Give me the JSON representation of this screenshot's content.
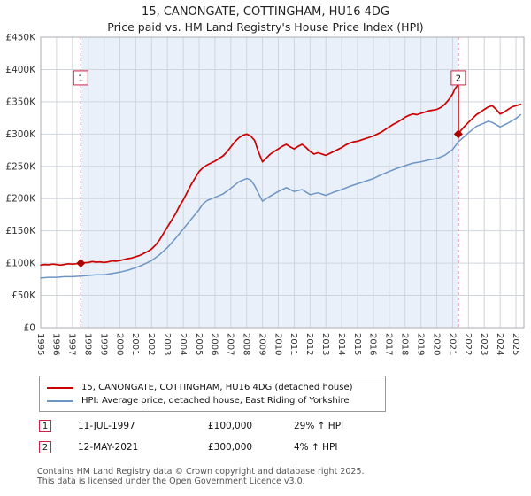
{
  "title": "15, CANONGATE, COTTINGHAM, HU16 4DG",
  "subtitle": "Price paid vs. HM Land Registry's House Price Index (HPI)",
  "chart_data": {
    "type": "line",
    "title": "15, CANONGATE, COTTINGHAM, HU16 4DG",
    "subtitle": "Price paid vs. HM Land Registry's House Price Index (HPI)",
    "y_units": "GBP_thousands",
    "xlim": [
      1995,
      2025.5
    ],
    "ylim_thousands": [
      0,
      450
    ],
    "ytick_values_thousands": [
      0,
      50,
      100,
      150,
      200,
      250,
      300,
      350,
      400,
      450
    ],
    "ytick_labels": [
      "£0",
      "£50K",
      "£100K",
      "£150K",
      "£200K",
      "£250K",
      "£300K",
      "£350K",
      "£400K",
      "£450K"
    ],
    "xtick_labels": [
      "1995",
      "1996",
      "1997",
      "1998",
      "1999",
      "2000",
      "2001",
      "2002",
      "2003",
      "2004",
      "2005",
      "2006",
      "2007",
      "2008",
      "2009",
      "2010",
      "2011",
      "2012",
      "2013",
      "2014",
      "2015",
      "2016",
      "2017",
      "2018",
      "2019",
      "2020",
      "2021",
      "2022",
      "2023",
      "2024",
      "2025"
    ],
    "grid": true,
    "legend_position": "bottom",
    "shaded_region_x": [
      1997.53,
      2021.36
    ],
    "colors": {
      "property_line": "#cc0000",
      "hpi_line": "#6d95c5",
      "sale_dashed": "#e0506e",
      "band": "#eaf0f9",
      "grid": "#d0d5dd",
      "border": "#a9aeb6",
      "marker": "#aa0000",
      "tick_text": "#333333"
    },
    "series": [
      {
        "name": "15, CANONGATE, COTTINGHAM, HU16 4DG (detached house)",
        "color": "#cc0000",
        "x": [
          1995,
          1995.25,
          1995.5,
          1995.75,
          1996,
          1996.25,
          1996.5,
          1996.75,
          1997,
          1997.25,
          1997.53,
          1997.75,
          1998,
          1998.25,
          1998.5,
          1998.75,
          1999,
          1999.25,
          1999.5,
          1999.75,
          2000,
          2000.25,
          2000.5,
          2000.75,
          2001,
          2001.25,
          2001.5,
          2001.75,
          2002,
          2002.25,
          2002.5,
          2002.75,
          2003,
          2003.25,
          2003.5,
          2003.75,
          2004,
          2004.25,
          2004.5,
          2004.75,
          2005,
          2005.25,
          2005.5,
          2005.75,
          2006,
          2006.25,
          2006.5,
          2006.75,
          2007,
          2007.25,
          2007.5,
          2007.75,
          2008,
          2008.25,
          2008.5,
          2008.75,
          2009,
          2009.25,
          2009.5,
          2009.75,
          2010,
          2010.25,
          2010.5,
          2010.75,
          2011,
          2011.25,
          2011.5,
          2011.75,
          2012,
          2012.25,
          2012.5,
          2012.75,
          2013,
          2013.25,
          2013.5,
          2013.75,
          2014,
          2014.25,
          2014.5,
          2014.75,
          2015,
          2015.25,
          2015.5,
          2015.75,
          2016,
          2016.25,
          2016.5,
          2016.75,
          2017,
          2017.25,
          2017.5,
          2017.75,
          2018,
          2018.25,
          2018.5,
          2018.75,
          2019,
          2019.25,
          2019.5,
          2019.75,
          2020,
          2020.25,
          2020.5,
          2020.75,
          2021,
          2021.15,
          2021.3,
          2021.36,
          2021.36,
          2021.5,
          2021.75,
          2022,
          2022.25,
          2022.5,
          2022.75,
          2023,
          2023.25,
          2023.5,
          2023.75,
          2024,
          2024.25,
          2024.5,
          2024.75,
          2025,
          2025.3
        ],
        "y": [
          97,
          98,
          97.5,
          98.5,
          98,
          97,
          98,
          99,
          98.5,
          99,
          100,
          100.5,
          101,
          102.5,
          101.5,
          102,
          101,
          102,
          103.5,
          103,
          104,
          105.5,
          107,
          108,
          110,
          112,
          115,
          118,
          122,
          128,
          136,
          146,
          156,
          166,
          176,
          188,
          198,
          210,
          222,
          232,
          242,
          248,
          252,
          255,
          258,
          262,
          266,
          272,
          280,
          288,
          294,
          298,
          300,
          297,
          290,
          272,
          257,
          263,
          269,
          273,
          277,
          281,
          284,
          280,
          277,
          281,
          284,
          279,
          273,
          269,
          271,
          269,
          267,
          270,
          273,
          276,
          279,
          283,
          286,
          288,
          289,
          291,
          293,
          295,
          297,
          300,
          303,
          307,
          311,
          315,
          318,
          322,
          326,
          329,
          331,
          330,
          332,
          334,
          336,
          337,
          338,
          341,
          346,
          353,
          362,
          370,
          375,
          375,
          300,
          305,
          312,
          318,
          324,
          330,
          334,
          338,
          342,
          344,
          338,
          331,
          334,
          338,
          342,
          344,
          346
        ]
      },
      {
        "name": "HPI: Average price, detached house, East Riding of Yorkshire",
        "color": "#6d95c5",
        "x": [
          1995,
          1995.5,
          1996,
          1996.5,
          1997,
          1997.5,
          1998,
          1998.5,
          1999,
          1999.5,
          2000,
          2000.5,
          2001,
          2001.5,
          2002,
          2002.5,
          2003,
          2003.5,
          2004,
          2004.5,
          2005,
          2005.25,
          2005.5,
          2006,
          2006.5,
          2007,
          2007.5,
          2008,
          2008.25,
          2008.5,
          2008.75,
          2009,
          2009.5,
          2010,
          2010.5,
          2011,
          2011.5,
          2012,
          2012.5,
          2013,
          2013.5,
          2014,
          2014.5,
          2015,
          2015.5,
          2016,
          2016.5,
          2017,
          2017.5,
          2018,
          2018.5,
          2019,
          2019.5,
          2020,
          2020.5,
          2021,
          2021.36,
          2021.5,
          2022,
          2022.5,
          2023,
          2023.25,
          2023.5,
          2024,
          2024.5,
          2025,
          2025.3
        ],
        "y": [
          77,
          78,
          78,
          79,
          79,
          80,
          81,
          82,
          82,
          84,
          86,
          89,
          93,
          98,
          104,
          113,
          124,
          138,
          153,
          168,
          183,
          192,
          197,
          202,
          207,
          216,
          226,
          231,
          229,
          220,
          208,
          196,
          204,
          211,
          217,
          211,
          214,
          206,
          209,
          205,
          210,
          214,
          219,
          223,
          227,
          231,
          237,
          242,
          247,
          251,
          255,
          257,
          260,
          262,
          267,
          276,
          288,
          291,
          302,
          312,
          317,
          320,
          318,
          311,
          317,
          324,
          330
        ]
      }
    ],
    "markers": [
      {
        "label": "1",
        "x": 1997.53,
        "y": 100
      },
      {
        "label": "2",
        "x": 2021.36,
        "y": 300
      }
    ]
  },
  "legend": {
    "items": [
      {
        "label": "15, CANONGATE, COTTINGHAM, HU16 4DG (detached house)",
        "color": "#cc0000"
      },
      {
        "label": "HPI: Average price, detached house, East Riding of Yorkshire",
        "color": "#6d95c5"
      }
    ]
  },
  "annotations": [
    {
      "num": "1",
      "date": "11-JUL-1997",
      "price": "£100,000",
      "hpi": "29% ↑ HPI"
    },
    {
      "num": "2",
      "date": "12-MAY-2021",
      "price": "£300,000",
      "hpi": "4% ↑ HPI"
    }
  ],
  "footer": {
    "line1": "Contains HM Land Registry data © Crown copyright and database right 2025.",
    "line2": "This data is licensed under the Open Government Licence v3.0."
  }
}
